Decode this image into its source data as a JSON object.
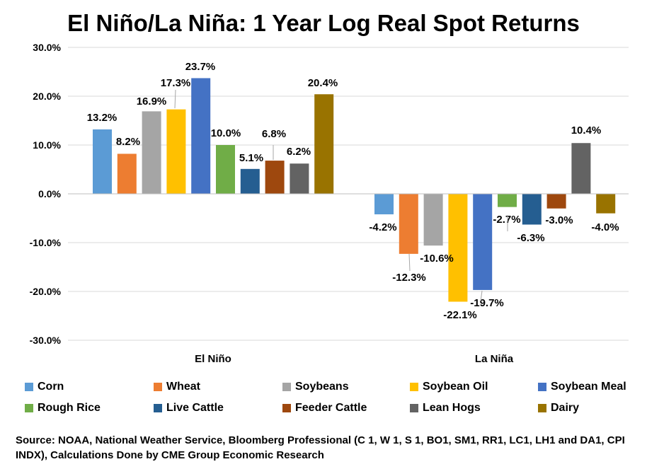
{
  "chart_data": {
    "type": "bar",
    "title": "El Niño/La Niña: 1 Year Log Real Spot Returns",
    "categories": [
      "El Niño",
      "La Niña"
    ],
    "ylim": [
      -30,
      30
    ],
    "ytick_labels": [
      "30.0%",
      "20.0%",
      "10.0%",
      "0.0%",
      "-10.0%",
      "-20.0%",
      "-30.0%"
    ],
    "ytick_values": [
      30,
      20,
      10,
      0,
      -10,
      -20,
      -30
    ],
    "grid": true,
    "legend_position": "bottom",
    "series": [
      {
        "name": "Corn",
        "color": "#5B9BD5",
        "values": [
          13.2,
          -4.2
        ],
        "labels": [
          "13.2%",
          "-4.2%"
        ]
      },
      {
        "name": "Wheat",
        "color": "#ED7D31",
        "values": [
          8.2,
          -12.3
        ],
        "labels": [
          "8.2%",
          "-12.3%"
        ]
      },
      {
        "name": "Soybeans",
        "color": "#A5A5A5",
        "values": [
          16.9,
          -10.6
        ],
        "labels": [
          "16.9%",
          "-10.6%"
        ]
      },
      {
        "name": "Soybean Oil",
        "color": "#FFC000",
        "values": [
          17.3,
          -22.1
        ],
        "labels": [
          "17.3%",
          "-22.1%"
        ]
      },
      {
        "name": "Soybean Meal",
        "color": "#4472C4",
        "values": [
          23.7,
          -19.7
        ],
        "labels": [
          "23.7%",
          "-19.7%"
        ]
      },
      {
        "name": "Rough Rice",
        "color": "#70AD47",
        "values": [
          10.0,
          -2.7
        ],
        "labels": [
          "10.0%",
          "-2.7%"
        ]
      },
      {
        "name": "Live Cattle",
        "color": "#255E91",
        "values": [
          5.1,
          -6.3
        ],
        "labels": [
          "5.1%",
          "-6.3%"
        ]
      },
      {
        "name": "Feeder Cattle",
        "color": "#9E480E",
        "values": [
          6.8,
          -3.0
        ],
        "labels": [
          "6.8%",
          "-3.0%"
        ]
      },
      {
        "name": "Lean Hogs",
        "color": "#636363",
        "values": [
          6.2,
          10.4
        ],
        "labels": [
          "6.2%",
          "10.4%"
        ]
      },
      {
        "name": "Dairy",
        "color": "#997300",
        "values": [
          20.4,
          -4.0
        ],
        "labels": [
          "20.4%",
          "-4.0%"
        ]
      }
    ],
    "source": "Source: NOAA, National Weather Service, Bloomberg Professional (C 1, W 1, S 1, BO1, SM1, RR1, LC1, LH1 and DA1, CPI INDX), Calculations Done by CME Group Economic Research"
  }
}
